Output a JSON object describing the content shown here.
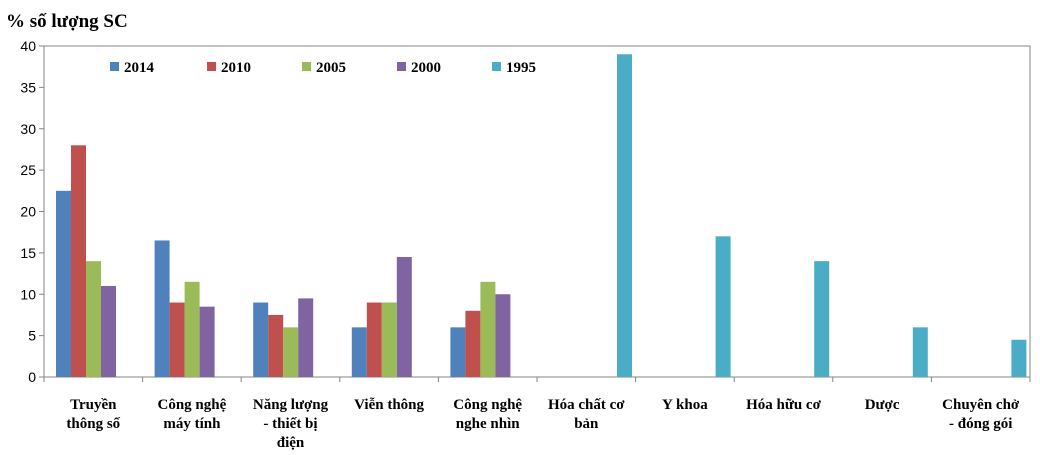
{
  "chart_data": {
    "type": "bar",
    "title": "",
    "ylabel": "% số lượng SC",
    "xlabel": "",
    "ylim": [
      0,
      40
    ],
    "yticks": [
      0,
      5,
      10,
      15,
      20,
      25,
      30,
      35,
      40
    ],
    "grid": false,
    "legend_position": "top-left",
    "categories": [
      [
        "Truyền",
        "thông số"
      ],
      [
        "Công nghệ",
        "máy tính"
      ],
      [
        "Năng lượng",
        "- thiết bị",
        "điện"
      ],
      [
        "Viễn thông"
      ],
      [
        "Công nghệ",
        "nghe nhìn"
      ],
      [
        "Hóa chất cơ",
        "bản"
      ],
      [
        "Y khoa"
      ],
      [
        "Hóa hữu cơ"
      ],
      [
        "Dược"
      ],
      [
        "Chuyên chở",
        "- đóng gói"
      ]
    ],
    "series": [
      {
        "name": "2014",
        "color": "#4F81BD",
        "values": [
          22.5,
          16.5,
          9,
          6,
          6,
          null,
          null,
          null,
          null,
          null
        ]
      },
      {
        "name": "2010",
        "color": "#C0504D",
        "values": [
          28,
          9,
          7.5,
          9,
          8,
          null,
          null,
          null,
          null,
          null
        ]
      },
      {
        "name": "2005",
        "color": "#9BBB59",
        "values": [
          14,
          11.5,
          6,
          9,
          11.5,
          null,
          null,
          null,
          null,
          null
        ]
      },
      {
        "name": "2000",
        "color": "#8064A2",
        "values": [
          11,
          8.5,
          9.5,
          14.5,
          10,
          null,
          null,
          null,
          null,
          null
        ]
      },
      {
        "name": "1995",
        "color": "#4BACC6",
        "values": [
          null,
          null,
          null,
          null,
          null,
          39,
          17,
          14,
          6,
          4.5
        ]
      }
    ]
  }
}
